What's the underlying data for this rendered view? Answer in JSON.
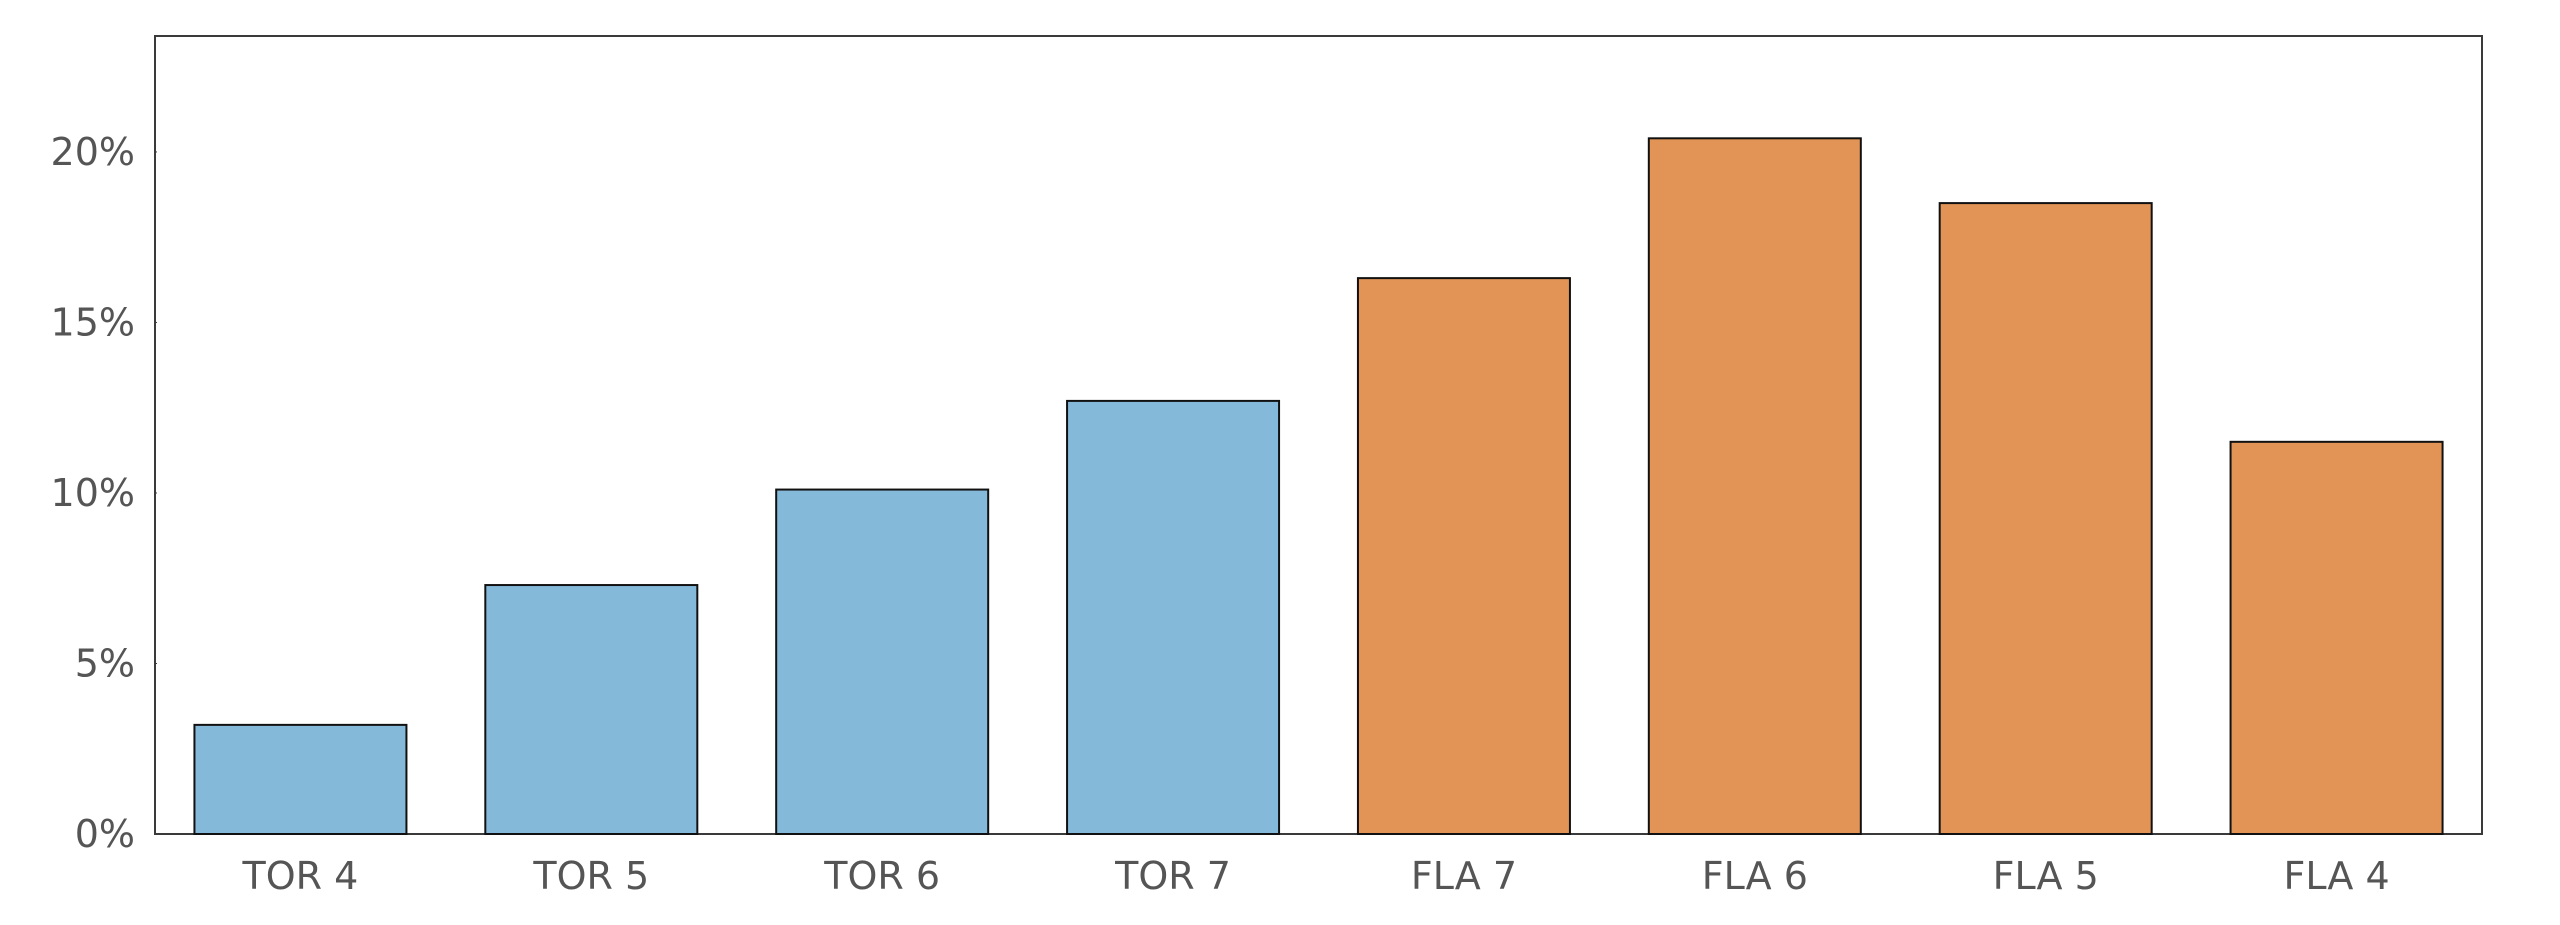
{
  "chart_data": {
    "type": "bar",
    "title": "",
    "xlabel": "",
    "ylabel": "",
    "categories": [
      "TOR 4",
      "TOR 5",
      "TOR 6",
      "TOR 7",
      "FLA 7",
      "FLA 6",
      "FLA 5",
      "FLA 4"
    ],
    "values": [
      3.2,
      7.3,
      10.1,
      12.7,
      16.3,
      20.4,
      18.5,
      11.5
    ],
    "bar_colors": [
      "#85b9da",
      "#85b9da",
      "#85b9da",
      "#85b9da",
      "#e29457",
      "#e29457",
      "#e29457",
      "#e29457"
    ],
    "ylim": [
      0,
      23.4
    ],
    "yticks": [
      0,
      5,
      10,
      15,
      20
    ],
    "ytick_labels": [
      "0%",
      "5%",
      "10%",
      "15%",
      "20%"
    ],
    "grid": false,
    "legend": "none"
  }
}
